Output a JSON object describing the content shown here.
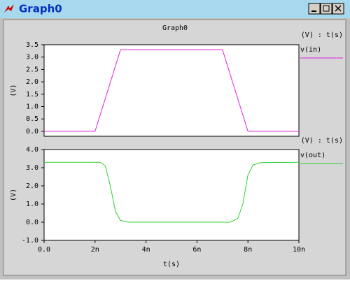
{
  "window": {
    "title": "Graph0"
  },
  "chart_data": [
    {
      "type": "line",
      "title": "Graph0",
      "legend_header": "(V) : t(s)",
      "ylabel": "(V)",
      "xlim": [
        0,
        1e-08
      ],
      "ylim": [
        -0.2,
        3.5
      ],
      "yticks": [
        {
          "value": 0,
          "label": "0.0"
        },
        0.5,
        {
          "value": 1,
          "label": "1.0"
        },
        1.5,
        {
          "value": 2,
          "label": "2.0"
        },
        2.5,
        {
          "value": 3,
          "label": "3.0"
        },
        3.5
      ],
      "series": [
        {
          "name": "v(in)",
          "color": "#e020e0",
          "x": [
            0,
            2e-09,
            3e-09,
            7e-09,
            8e-09,
            1e-08
          ],
          "values": [
            0,
            0,
            3.3,
            3.3,
            0,
            0
          ]
        }
      ]
    },
    {
      "type": "line",
      "legend_header": "(V) : t(s)",
      "ylabel": "(V)",
      "xlabel": "t(s)",
      "xlim": [
        0,
        1e-08
      ],
      "ylim": [
        -1,
        4
      ],
      "xticks": [
        {
          "value": 0,
          "label": "0.0"
        },
        {
          "value": 2e-09,
          "label": "2n"
        },
        {
          "value": 4e-09,
          "label": "4n"
        },
        {
          "value": 6e-09,
          "label": "6n"
        },
        {
          "value": 8e-09,
          "label": "8n"
        },
        {
          "value": 1e-08,
          "label": "10n"
        }
      ],
      "yticks": [
        {
          "value": -1,
          "label": "-1.0"
        },
        {
          "value": 0,
          "label": "0.0"
        },
        {
          "value": 1,
          "label": "1.0"
        },
        {
          "value": 2,
          "label": "2.0"
        },
        {
          "value": 3,
          "label": "3.0"
        },
        {
          "value": 4,
          "label": "4.0"
        }
      ],
      "series": [
        {
          "name": "v(out)",
          "color": "#30d030",
          "x": [
            0,
            2.2e-09,
            2.4e-09,
            2.6e-09,
            2.8e-09,
            3e-09,
            3.3e-09,
            7.3e-09,
            7.6e-09,
            7.8e-09,
            8e-09,
            8.2e-09,
            8.5e-09,
            1e-08
          ],
          "values": [
            3.3,
            3.3,
            3.1,
            2.0,
            0.6,
            0.1,
            0,
            0,
            0.2,
            1.0,
            2.6,
            3.15,
            3.28,
            3.3
          ]
        }
      ]
    }
  ]
}
